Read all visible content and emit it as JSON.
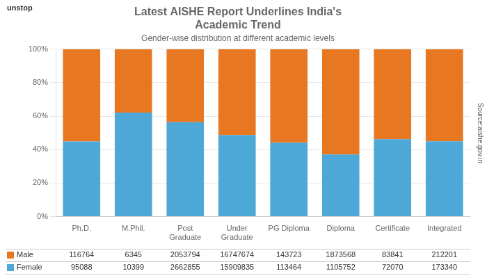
{
  "chart_data": {
    "type": "bar",
    "stacked": true,
    "title": [
      "Latest AISHE Report Underlines India's",
      "Academic Trend"
    ],
    "subtitle": "Gender-wise distribution at different academic levels",
    "annotations": [
      "Source:aishe.gov.in",
      "unstop"
    ],
    "categories": [
      "Ph.D.",
      "M.Phil.",
      "Post\nGraduate",
      "Under\nGraduate",
      "PG Diploma",
      "Diploma",
      "Certificate",
      "Integrated"
    ],
    "series": [
      {
        "name": "Female",
        "color": "#4DA8D8",
        "values": [
          44.88,
          62.11,
          56.46,
          48.72,
          44.12,
          37.11,
          46.23,
          44.96
        ],
        "counts": [
          95088,
          10399,
          2662855,
          15909835,
          113464,
          1105752,
          72070,
          173340
        ]
      },
      {
        "name": "Male",
        "color": "#E87722",
        "values": [
          55.12,
          37.89,
          43.54,
          51.28,
          55.88,
          62.89,
          53.77,
          55.04
        ],
        "counts": [
          116764,
          6345,
          2053794,
          16747674,
          143723,
          1873568,
          83841,
          212201
        ]
      }
    ],
    "ylim": [
      0,
      100
    ],
    "yticks": [
      {
        "value": 0,
        "label": "0%"
      },
      {
        "value": 20,
        "label": "20%"
      },
      {
        "value": 40,
        "label": "40%"
      },
      {
        "value": 60,
        "label": "60%"
      },
      {
        "value": 80,
        "label": "80%"
      },
      {
        "value": 100,
        "label": "100%"
      }
    ],
    "grid": true
  }
}
